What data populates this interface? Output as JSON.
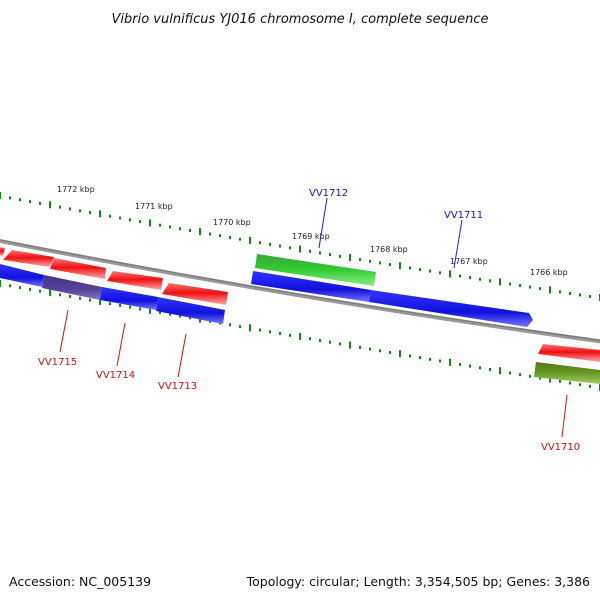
{
  "title": "Vibrio vulnificus YJ016 chromosome I, complete sequence",
  "footer": {
    "accession": "Accession: NC_005139",
    "stats": "Topology: circular; Length: 3,354,505 bp; Genes: 3,386"
  },
  "ticks": [
    "1772 kbp",
    "1771 kbp",
    "1770 kbp",
    "1769 kbp",
    "1768 kbp",
    "1767 kbp",
    "1766 kbp"
  ],
  "gene_labels": {
    "vv1712": "VV1712",
    "vv1711": "VV1711",
    "vv1715": "VV1715",
    "vv1714": "VV1714",
    "vv1713": "VV1713",
    "vv1710": "VV1710"
  },
  "colors": {
    "red": "#ee1111",
    "blue": "#1111ee",
    "green": "#33cc33",
    "olive": "#669922",
    "purple": "#554499",
    "backbone": "#888888",
    "tick": "#118811"
  }
}
